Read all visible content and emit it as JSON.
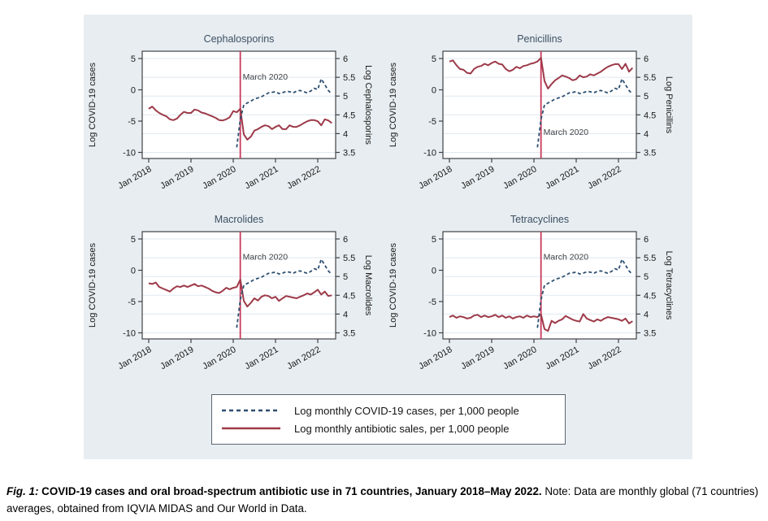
{
  "page": {
    "background": "#ffffff"
  },
  "figure": {
    "background": "#e7edf1",
    "caption": {
      "label": "Fig. 1:",
      "title": " COVID-19 cases and oral broad-spectrum antibiotic use in 71 countries, January 2018–May 2022.",
      "note": " Note: Data are monthly global (71 countries) averages, obtained from IQVIA MIDAS and Our World in Data."
    },
    "legend": {
      "items": [
        {
          "label": "Log monthly COVID-19 cases, per 1,000 people",
          "style": "dashed",
          "color": "#2e4f70"
        },
        {
          "label": "Log monthly antibiotic sales, per 1,000 people",
          "style": "solid",
          "color": "#9d3a49"
        }
      ]
    }
  },
  "chart_data": {
    "type": "line",
    "n_months": 53,
    "x_axis": {
      "tick_labels": [
        "Jan 2018",
        "Jan 2019",
        "Jan 2020",
        "Jan 2021",
        "Jan 2022"
      ],
      "tick_month_indices": [
        0,
        12,
        24,
        36,
        48
      ],
      "start": "Jan 2018",
      "end": "May 2022"
    },
    "left_axis": {
      "label": "Log COVID-19 cases",
      "ticks": [
        5,
        0,
        -5,
        -10
      ],
      "range": [
        -10,
        5
      ]
    },
    "right_axis_ticks": [
      6,
      5.5,
      5,
      4.5,
      4,
      3.5
    ],
    "grid": "horizontal-light",
    "title_color": "#3e5063",
    "series_color": "#9d3a49",
    "vline": {
      "label": "March 2020",
      "month_index": 26,
      "color": "#c83a5c"
    },
    "covid_series": {
      "label": "Log monthly COVID-19 cases, per 1,000 people",
      "axis": "left",
      "color": "#2e4f70",
      "start_month_index": 25,
      "values": [
        -9.2,
        -4.7,
        -2.4,
        -2.1,
        -1.8,
        -1.45,
        -1.3,
        -1.1,
        -0.8,
        -0.5,
        -0.4,
        -0.3,
        -0.6,
        -0.45,
        -0.25,
        -0.3,
        -0.5,
        -0.2,
        -0.1,
        -0.3,
        -0.5,
        -0.2,
        0.25,
        0.05,
        1.75,
        0.8,
        -0.1,
        -0.7
      ]
    },
    "panels": [
      {
        "title": "Cephalosporins",
        "right_axis_label": "Log Cephalosporins",
        "annotation_y": 1.6,
        "values": [
          4.66,
          4.72,
          4.62,
          4.55,
          4.5,
          4.46,
          4.38,
          4.36,
          4.4,
          4.5,
          4.58,
          4.55,
          4.55,
          4.64,
          4.62,
          4.56,
          4.54,
          4.5,
          4.46,
          4.42,
          4.36,
          4.35,
          4.38,
          4.44,
          4.6,
          4.57,
          4.66,
          3.98,
          3.84,
          3.92,
          4.08,
          4.12,
          4.18,
          4.22,
          4.2,
          4.12,
          4.18,
          4.22,
          4.12,
          4.12,
          4.22,
          4.18,
          4.18,
          4.22,
          4.28,
          4.33,
          4.36,
          4.36,
          4.33,
          4.22,
          4.38,
          4.35,
          4.28
        ]
      },
      {
        "title": "Penicillins",
        "right_axis_label": "Log Penicillins",
        "annotation_y": -7.2,
        "values": [
          5.92,
          5.95,
          5.82,
          5.72,
          5.7,
          5.62,
          5.6,
          5.72,
          5.78,
          5.8,
          5.86,
          5.82,
          5.88,
          5.92,
          5.86,
          5.84,
          5.72,
          5.66,
          5.7,
          5.78,
          5.74,
          5.8,
          5.82,
          5.86,
          5.88,
          5.92,
          6.02,
          5.4,
          5.2,
          5.32,
          5.42,
          5.48,
          5.55,
          5.52,
          5.48,
          5.42,
          5.45,
          5.55,
          5.5,
          5.52,
          5.58,
          5.55,
          5.6,
          5.65,
          5.72,
          5.78,
          5.82,
          5.85,
          5.85,
          5.72,
          5.86,
          5.65,
          5.75
        ]
      },
      {
        "title": "Macrolides",
        "right_axis_label": "Log Macrolides",
        "annotation_y": 1.7,
        "values": [
          4.82,
          4.8,
          4.84,
          4.72,
          4.68,
          4.64,
          4.6,
          4.68,
          4.74,
          4.72,
          4.76,
          4.72,
          4.76,
          4.8,
          4.74,
          4.76,
          4.72,
          4.68,
          4.62,
          4.58,
          4.56,
          4.62,
          4.7,
          4.66,
          4.7,
          4.72,
          4.92,
          4.35,
          4.2,
          4.3,
          4.42,
          4.36,
          4.46,
          4.5,
          4.48,
          4.42,
          4.46,
          4.35,
          4.42,
          4.48,
          4.46,
          4.44,
          4.42,
          4.46,
          4.5,
          4.55,
          4.52,
          4.58,
          4.65,
          4.52,
          4.6,
          4.48,
          4.5
        ]
      },
      {
        "title": "Tetracyclines",
        "right_axis_label": "Log Tetracyclines",
        "annotation_y": 1.7,
        "values": [
          3.92,
          3.96,
          3.9,
          3.94,
          3.92,
          3.88,
          3.9,
          3.96,
          3.98,
          3.92,
          3.96,
          3.92,
          3.94,
          3.98,
          3.92,
          3.96,
          3.9,
          3.94,
          3.88,
          3.92,
          3.94,
          3.9,
          3.96,
          3.92,
          3.94,
          3.92,
          3.99,
          3.6,
          3.55,
          3.82,
          3.76,
          3.82,
          3.86,
          3.95,
          3.9,
          3.85,
          3.82,
          3.8,
          4.0,
          3.88,
          3.84,
          3.8,
          3.86,
          3.82,
          3.88,
          3.92,
          3.9,
          3.88,
          3.86,
          3.82,
          3.88,
          3.75,
          3.81
        ]
      }
    ]
  }
}
